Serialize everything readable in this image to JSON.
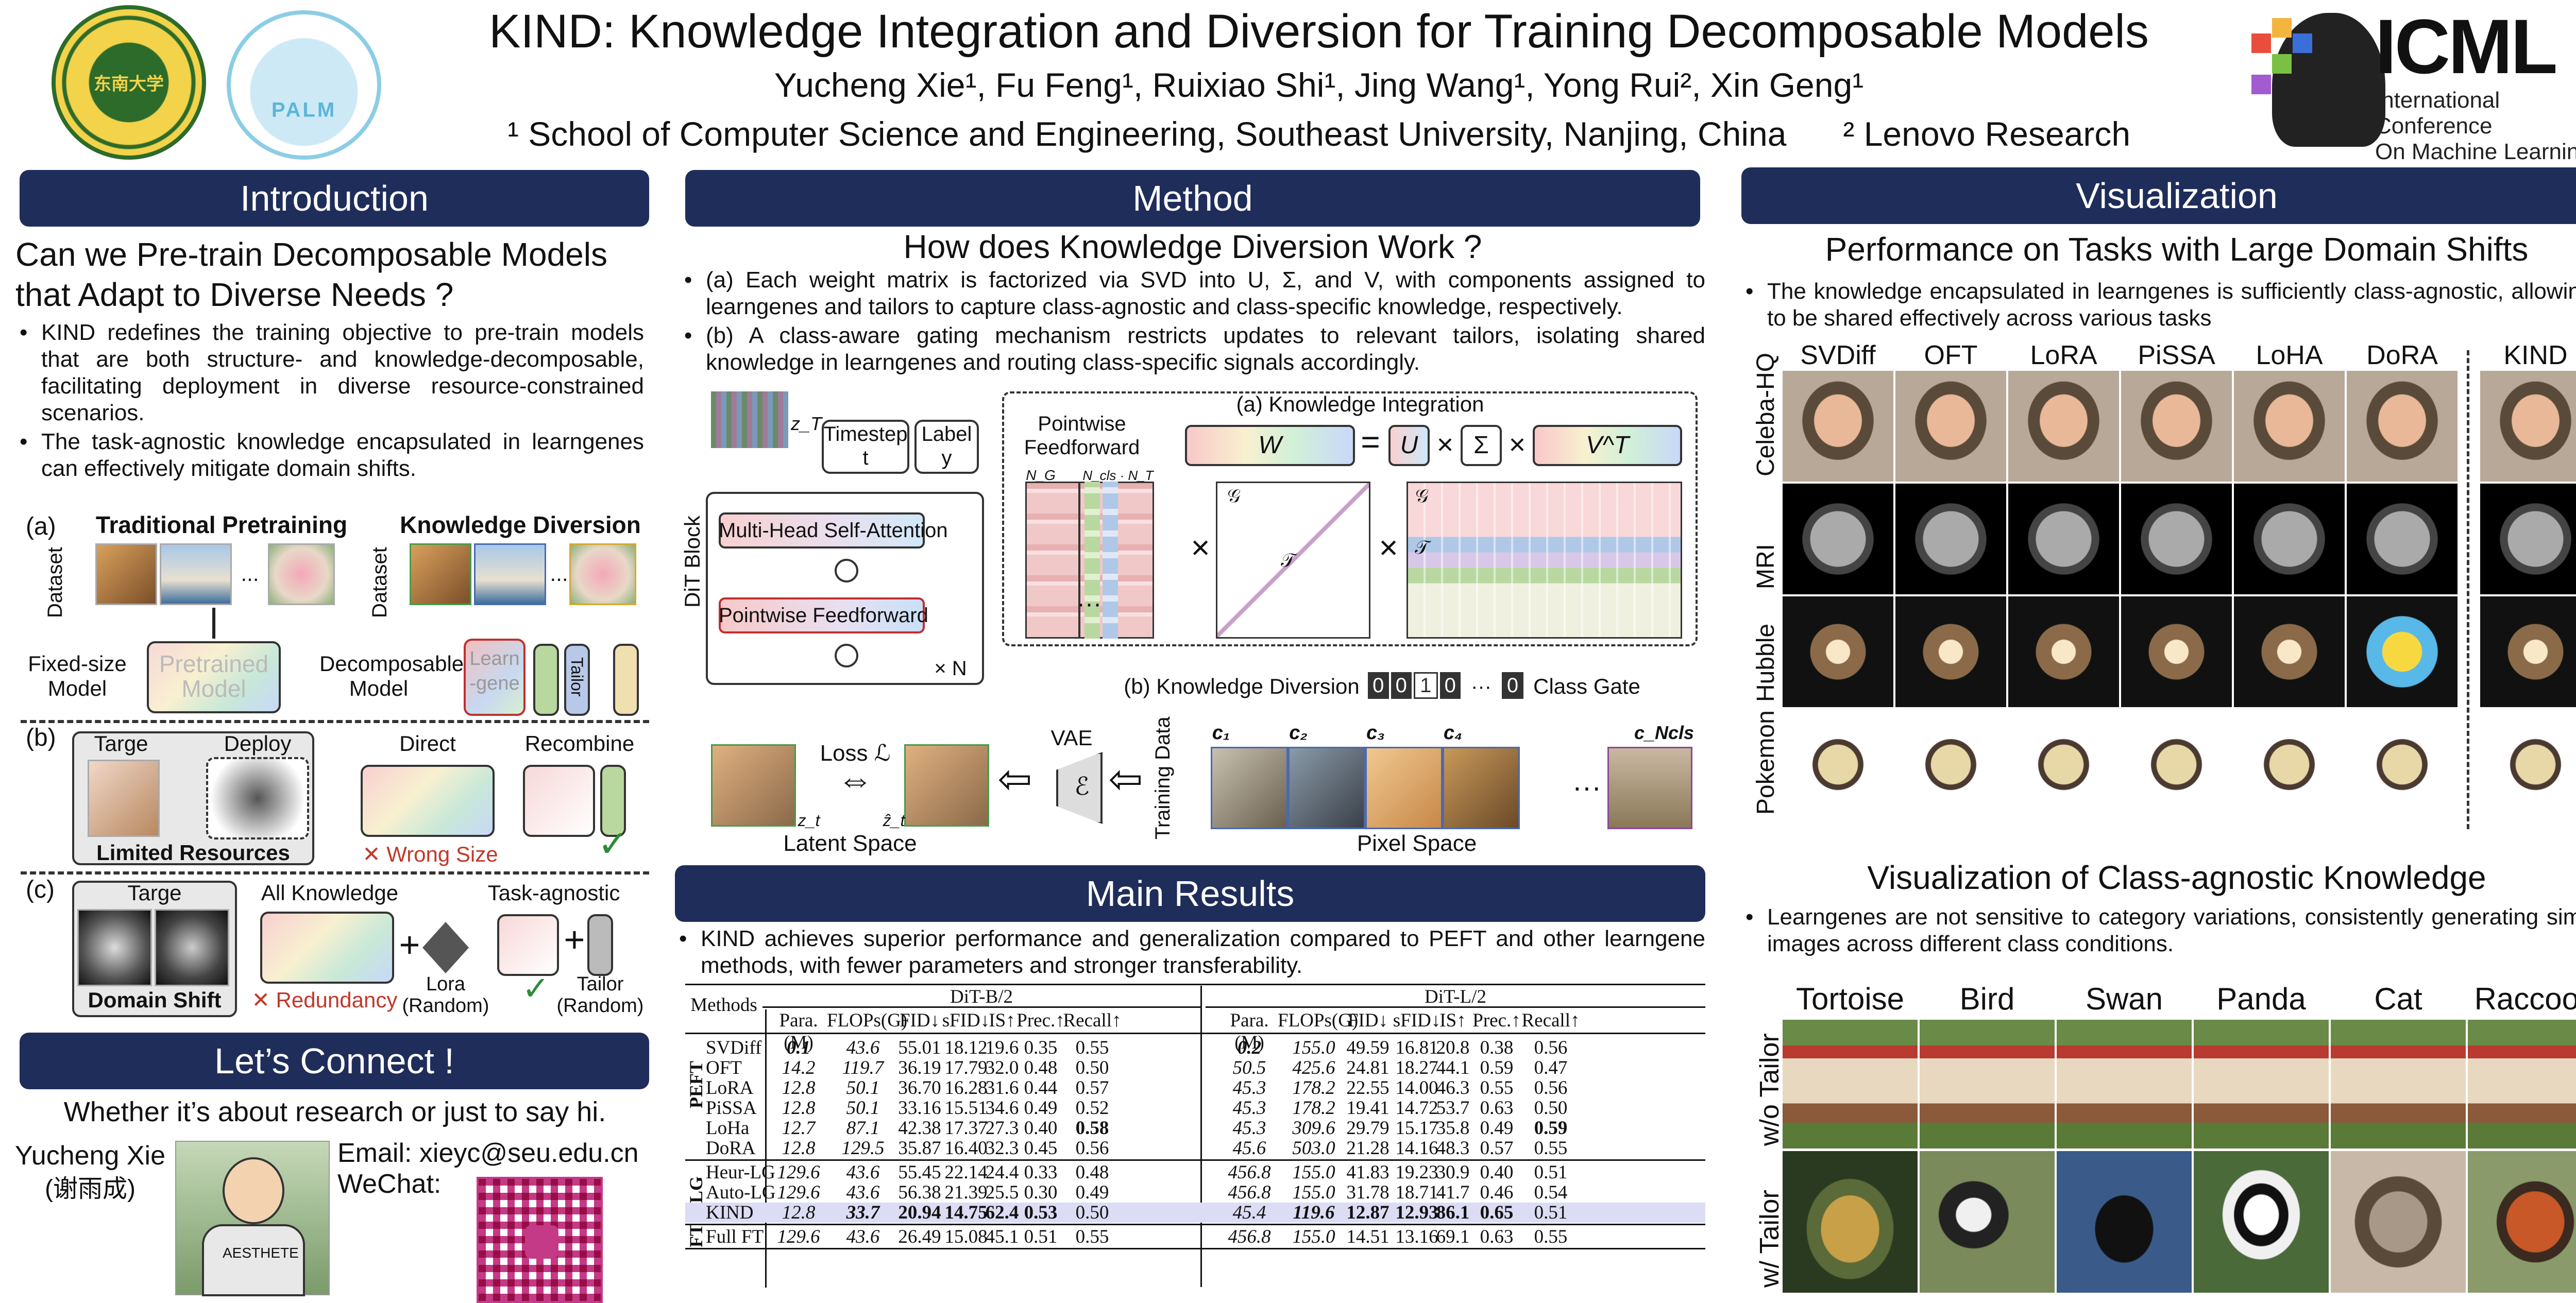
{
  "header": {
    "title": "KIND: Knowledge Integration and Diversion for Training Decomposable Models",
    "authors": "Yucheng Xie¹, Fu Feng¹, Ruixiao Shi¹, Jing Wang¹, Yong Rui², Xin Geng¹",
    "affiliation1": "¹ School of Computer Science and Engineering, Southeast University, Nanjing, China",
    "affiliation2": "² Lenovo Research",
    "logo_seu_text": "东南大学",
    "logo_palm_text": "PALM",
    "icml_big": "ICML",
    "icml_line1": "International Conference",
    "icml_line2": "On Machine Learning"
  },
  "intro": {
    "section": "Introduction",
    "question": "Can we Pre-train Decomposable Models that Adapt to Diverse Needs ?",
    "bullets": [
      "KIND redefines the training objective to pre-train models that are both structure- and knowledge-decomposable, facilitating deployment in diverse resource-constrained scenarios.",
      "The task-agnostic knowledge encapsulated in learngenes can effectively mitigate domain shifts."
    ],
    "fig": {
      "a": "(a)",
      "b": "(b)",
      "c": "(c)",
      "traditional": "Traditional Pretraining",
      "diversion": "Knowledge Diversion",
      "dataset": "Dataset",
      "ellipsis": "...",
      "fixed_model": "Fixed-size Model",
      "pretrained_model": "Pretrained Model",
      "decomposable_model": "Decomposable Model",
      "learngene": "Learn -gene",
      "tailor": "Tailor",
      "targe_b": "Targe",
      "deploy": "Deploy",
      "limited": "Limited Resources",
      "direct": "Direct",
      "recombine": "Recombine",
      "wrong_size": "✕ Wrong Size",
      "check": "✓",
      "targe_c": "Targe",
      "domain_shift": "Domain Shift",
      "all_knowledge": "All Knowledge",
      "task_agnostic": "Task-agnostic",
      "redundancy": "✕ Redundancy",
      "lora_random": "Lora (Random)",
      "tailor_random": "Tailor (Random)"
    }
  },
  "connect": {
    "section": "Let’s Connect !",
    "tagline": "Whether it’s about research or just to say hi.",
    "name": "Yucheng Xie",
    "name_cn": "(谢雨成)",
    "email": "Email: xieyc@seu.edu.cn",
    "wechat": "WeChat:",
    "shirt_text": "AESTHETE"
  },
  "method": {
    "section": "Method",
    "question": "How does Knowledge Diversion Work ?",
    "bullets": [
      "(a) Each weight matrix is factorized via SVD into U, Σ, and V, with components assigned to learngenes and tailors to capture class-agnostic and class-specific knowledge, respectively.",
      "(b) A class-aware gating mechanism restricts updates to relevant tailors, isolating shared knowledge in learngenes and routing class-specific signals accordingly."
    ],
    "fig": {
      "zT": "z_T",
      "timestep": "Timestep t",
      "label": "Label y",
      "dit_block": "DiT Block",
      "mhsa": "Multi-Head Self-Attention",
      "pff": "Pointwise Feedforward",
      "times_n": "× N",
      "pff_title": "Pointwise Feedforward",
      "ng": "N_G",
      "ncls": "N_cls · N_T",
      "ki_title": "(a)  Knowledge Integration",
      "W": "W",
      "eq": "=",
      "U": "U",
      "times": "×",
      "Sigma": "Σ",
      "VT": "V^T",
      "G": "𝒢",
      "T": "𝒯",
      "kd_title": "(b)  Knowledge Diversion",
      "gate_bits": [
        "0",
        "0",
        "1",
        "0"
      ],
      "gate_dots": "···",
      "gate_last": "0",
      "class_gate": "Class Gate",
      "loss": "Loss ℒ",
      "vae": "VAE",
      "eps": "ℰ",
      "training_data": "Training Data",
      "zt": "z_t",
      "zt_hat": "ẑ_t",
      "latent_space": "Latent Space",
      "pixel_space": "Pixel Space",
      "c_labels": [
        "c₁",
        "c₂",
        "c₃",
        "c₄",
        "···",
        "c_Ncls"
      ]
    }
  },
  "results": {
    "section": "Main Results",
    "bullet": "KIND achieves superior performance and generalization compared to PEFT and other learngene methods, with fewer parameters and stronger transferability.",
    "table": {
      "methods_label": "Methods",
      "group_b": "DiT-B/2",
      "group_l": "DiT-L/2",
      "columns": [
        "Para.(M)",
        "FLOPs(G)",
        "FID↓",
        "sFID↓",
        "IS↑",
        "Prec.↑",
        "Recall↑"
      ],
      "sections": [
        {
          "name": "PEFT",
          "rows": [
            {
              "method": "SVDiff",
              "b": [
                "0.1",
                "43.6",
                "55.01",
                "18.12",
                "19.6",
                "0.35",
                "0.55"
              ],
              "l": [
                "0.2",
                "155.0",
                "49.59",
                "16.81",
                "20.8",
                "0.38",
                "0.56"
              ]
            },
            {
              "method": "OFT",
              "b": [
                "14.2",
                "119.7",
                "36.19",
                "17.79",
                "32.0",
                "0.48",
                "0.50"
              ],
              "l": [
                "50.5",
                "425.6",
                "24.81",
                "18.27",
                "44.1",
                "0.59",
                "0.47"
              ]
            },
            {
              "method": "LoRA",
              "b": [
                "12.8",
                "50.1",
                "36.70",
                "16.28",
                "31.6",
                "0.44",
                "0.57"
              ],
              "l": [
                "45.3",
                "178.2",
                "22.55",
                "14.00",
                "46.3",
                "0.55",
                "0.56"
              ]
            },
            {
              "method": "PiSSA",
              "b": [
                "12.8",
                "50.1",
                "33.16",
                "15.51",
                "34.6",
                "0.49",
                "0.52"
              ],
              "l": [
                "45.3",
                "178.2",
                "19.41",
                "14.72",
                "53.7",
                "0.63",
                "0.50"
              ]
            },
            {
              "method": "LoHa",
              "b": [
                "12.7",
                "87.1",
                "42.38",
                "17.37",
                "27.3",
                "0.40",
                "0.58"
              ],
              "l": [
                "45.3",
                "309.6",
                "29.79",
                "15.17",
                "35.8",
                "0.49",
                "0.59"
              ]
            },
            {
              "method": "DoRA",
              "b": [
                "12.8",
                "129.5",
                "35.87",
                "16.40",
                "32.3",
                "0.45",
                "0.56"
              ],
              "l": [
                "45.6",
                "503.0",
                "21.28",
                "14.16",
                "48.3",
                "0.57",
                "0.55"
              ]
            }
          ]
        },
        {
          "name": "LG",
          "rows": [
            {
              "method": "Heur-LG",
              "b": [
                "129.6",
                "43.6",
                "55.45",
                "22.14",
                "24.4",
                "0.33",
                "0.48"
              ],
              "l": [
                "456.8",
                "155.0",
                "41.83",
                "19.23",
                "30.9",
                "0.40",
                "0.51"
              ]
            },
            {
              "method": "Auto-LG",
              "b": [
                "129.6",
                "43.6",
                "56.38",
                "21.39",
                "25.5",
                "0.30",
                "0.49"
              ],
              "l": [
                "456.8",
                "155.0",
                "31.78",
                "18.71",
                "41.7",
                "0.46",
                "0.54"
              ]
            },
            {
              "method": "KIND",
              "b": [
                "12.8",
                "33.7",
                "20.94",
                "14.75",
                "62.4",
                "0.53",
                "0.50"
              ],
              "l": [
                "45.4",
                "119.6",
                "12.87",
                "12.93",
                "86.1",
                "0.65",
                "0.51"
              ]
            }
          ]
        },
        {
          "name": "FT",
          "rows": [
            {
              "method": "Full FT",
              "b": [
                "129.6",
                "43.6",
                "26.49",
                "15.08",
                "45.1",
                "0.51",
                "0.55"
              ],
              "l": [
                "456.8",
                "155.0",
                "14.51",
                "13.16",
                "69.1",
                "0.63",
                "0.55"
              ]
            }
          ]
        }
      ]
    }
  },
  "viz": {
    "section": "Visualization",
    "title1": "Performance on Tasks with Large Domain Shifts",
    "bullet1": "The knowledge encapsulated in learngenes is sufficiently class-agnostic, allowing it to be shared effectively across various tasks",
    "methods": [
      "SVDiff",
      "OFT",
      "LoRA",
      "PiSSA",
      "LoHA",
      "DoRA",
      "KIND"
    ],
    "rows": [
      "Celeba-HQ",
      "MRI",
      "Hubble",
      "Pokemon"
    ],
    "title2": "Visualization of Class-agnostic Knowledge",
    "bullet2": "Learngenes are not sensitive to category variations, consistently generating similar images across different class conditions.",
    "classes": [
      "Tortoise",
      "Bird",
      "Swan",
      "Panda",
      "Cat",
      "Raccoon"
    ],
    "row_wo": "w/o Tailor",
    "row_w": "w/ Tailor"
  },
  "colors": {
    "section_bar": "#1f2d5a",
    "kind_row": "#dcdcf5",
    "accent_red": "#c0392b",
    "accent_green": "#2e8b3a"
  }
}
